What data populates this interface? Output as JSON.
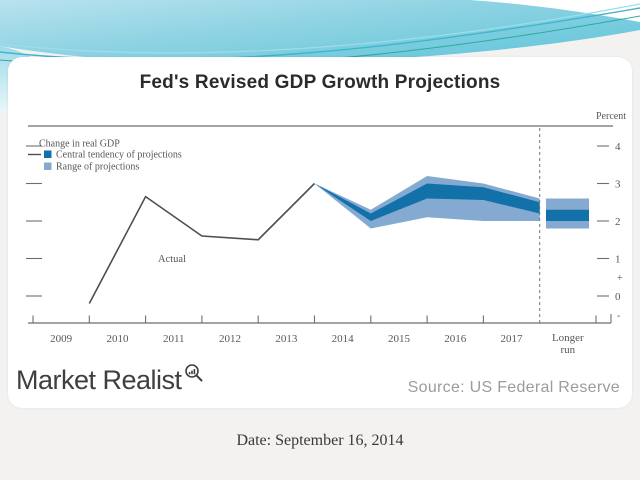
{
  "title": "Fed's Revised GDP Growth Projections",
  "footer": {
    "brand": "Market Realist",
    "brand_icon": "magnifier-chart-icon",
    "source": "Source: US Federal Reserve"
  },
  "caption": {
    "date": "Date: September 16, 2014"
  },
  "colors": {
    "central_tendency": "#1371a9",
    "range": "#84aad1",
    "actual_line": "#4f4f4f",
    "axis": "#6e6e6e",
    "chart_text": "#575757",
    "banner_teal_light": "#b9e2ee",
    "banner_teal_mid": "#8ed3e3",
    "banner_teal_dark": "#5fc4d9",
    "banner_stroke_teal": "#3fb6cc",
    "banner_stroke_green": "#2ea89e"
  },
  "chart_data": {
    "type": "line",
    "subtype": "actual-line-with-projection-fan-bands",
    "unit_label": "Percent",
    "annotation": "Actual",
    "legend": [
      {
        "label": "Change in real GDP",
        "marker": "line"
      },
      {
        "label": "Central tendency of projections",
        "marker": "square-dark"
      },
      {
        "label": "Range of projections",
        "marker": "square-light"
      }
    ],
    "x_tick_labels": [
      "2009",
      "2010",
      "2011",
      "2012",
      "2013",
      "2014",
      "2015",
      "2016",
      "2017"
    ],
    "x_last_label": [
      "Longer",
      "run"
    ],
    "y_ticks": [
      4,
      3,
      2,
      1,
      0
    ],
    "y_plus_mark": "+",
    "y_minus_mark": "-",
    "ylim": [
      -0.72,
      4.55
    ],
    "actual_series": {
      "name": "Change in real GDP",
      "x": [
        2009,
        2010,
        2011,
        2012,
        2013
      ],
      "values": [
        -0.2,
        2.65,
        1.6,
        1.5,
        3.0
      ]
    },
    "projection_years": [
      2014,
      2015,
      2016,
      2017
    ],
    "central_tendency": {
      "low": [
        2.0,
        2.6,
        2.56,
        2.2
      ],
      "high": [
        2.2,
        3.0,
        2.9,
        2.5
      ]
    },
    "range": {
      "low": [
        1.8,
        2.1,
        2.0,
        2.0
      ],
      "high": [
        2.3,
        3.2,
        3.0,
        2.6
      ]
    },
    "longer_run": {
      "central_tendency": [
        2.0,
        2.3
      ],
      "range": [
        1.8,
        2.6
      ]
    },
    "separator": "dashed line between 2017 and Longer run",
    "grid": "off",
    "legend_position": "top-left inside plot"
  }
}
